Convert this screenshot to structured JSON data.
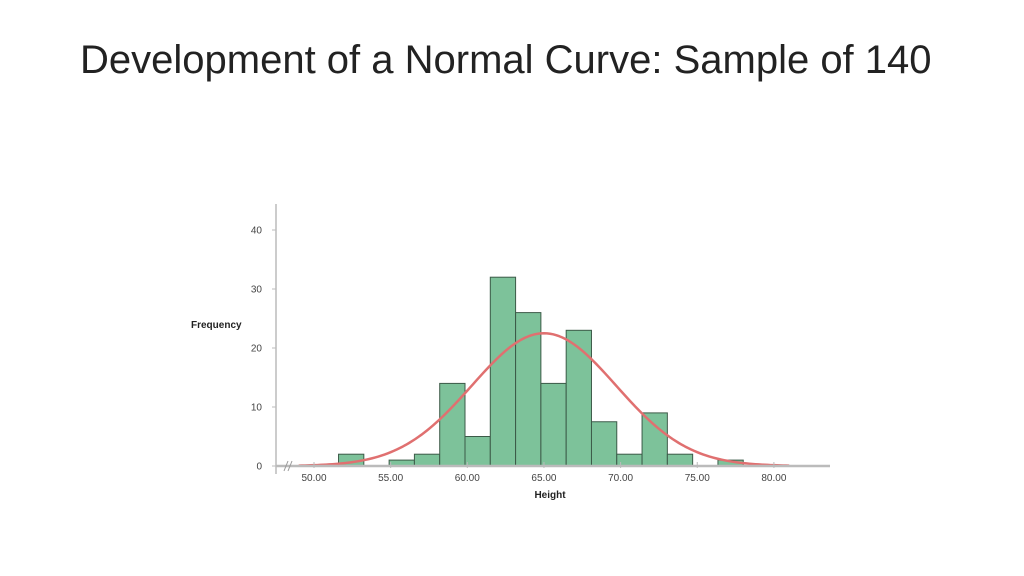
{
  "slide": {
    "title": "Development of a Normal Curve: Sample of 140"
  },
  "chart_data": {
    "type": "bar",
    "title": "",
    "xlabel": "Height",
    "ylabel": "Frequency",
    "x_ticks": [
      50,
      55,
      60,
      65,
      70,
      75,
      80
    ],
    "x_tick_labels": [
      "50.00",
      "55.00",
      "60.00",
      "65.00",
      "70.00",
      "75.00",
      "80.00"
    ],
    "y_ticks": [
      0,
      10,
      20,
      30,
      40
    ],
    "y_tick_labels": [
      "0",
      "10",
      "20",
      "30",
      "40"
    ],
    "xlim": [
      48.5,
      84
    ],
    "ylim": [
      0,
      44
    ],
    "bin_width": 1.65,
    "bins": [
      {
        "start": 51.6,
        "count": 2
      },
      {
        "start": 53.25,
        "count": 0
      },
      {
        "start": 54.9,
        "count": 1
      },
      {
        "start": 56.55,
        "count": 2
      },
      {
        "start": 58.2,
        "count": 14
      },
      {
        "start": 59.85,
        "count": 5
      },
      {
        "start": 61.5,
        "count": 32
      },
      {
        "start": 63.15,
        "count": 26
      },
      {
        "start": 64.8,
        "count": 14
      },
      {
        "start": 66.45,
        "count": 23
      },
      {
        "start": 68.1,
        "count": 7.5
      },
      {
        "start": 69.75,
        "count": 2
      },
      {
        "start": 71.4,
        "count": 9
      },
      {
        "start": 73.05,
        "count": 2
      },
      {
        "start": 74.7,
        "count": 0
      },
      {
        "start": 76.35,
        "count": 1
      }
    ],
    "normal_curve": {
      "mean": 65.0,
      "sd": 4.7,
      "peak": 22.5,
      "range": [
        49,
        81
      ]
    },
    "colors": {
      "bar_fill": "#7dc29a",
      "bar_stroke": "#3c5a48",
      "curve": "#e07070",
      "axis": "#bbbbbb"
    },
    "grid": false,
    "legend": "none"
  }
}
